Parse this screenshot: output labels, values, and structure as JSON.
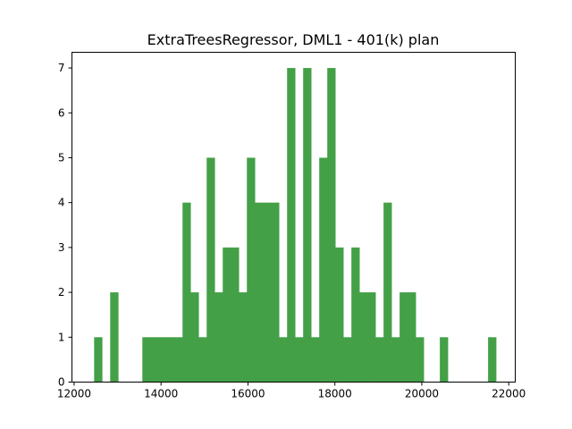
{
  "chart_data": {
    "type": "bar",
    "title": "ExtraTreesRegressor, DML1 - 401(k) plan",
    "xlabel": "",
    "ylabel": "",
    "xlim": [
      11950,
      22150
    ],
    "ylim": [
      0,
      7.35
    ],
    "xticks": [
      12000,
      14000,
      16000,
      18000,
      20000,
      22000
    ],
    "yticks": [
      0,
      1,
      2,
      3,
      4,
      5,
      6,
      7
    ],
    "bar_color": "#43a047",
    "bins": [
      {
        "x0": 12460,
        "x1": 12645,
        "count": 1
      },
      {
        "x0": 12830,
        "x1": 13015,
        "count": 2
      },
      {
        "x0": 13570,
        "x1": 13755,
        "count": 1
      },
      {
        "x0": 13755,
        "x1": 13940,
        "count": 1
      },
      {
        "x0": 13940,
        "x1": 14125,
        "count": 1
      },
      {
        "x0": 14125,
        "x1": 14310,
        "count": 1
      },
      {
        "x0": 14310,
        "x1": 14495,
        "count": 1
      },
      {
        "x0": 14495,
        "x1": 14680,
        "count": 4
      },
      {
        "x0": 14680,
        "x1": 14865,
        "count": 2
      },
      {
        "x0": 14865,
        "x1": 15050,
        "count": 1
      },
      {
        "x0": 15050,
        "x1": 15235,
        "count": 5
      },
      {
        "x0": 15235,
        "x1": 15420,
        "count": 2
      },
      {
        "x0": 15420,
        "x1": 15605,
        "count": 3
      },
      {
        "x0": 15605,
        "x1": 15790,
        "count": 3
      },
      {
        "x0": 15790,
        "x1": 15975,
        "count": 2
      },
      {
        "x0": 15975,
        "x1": 16160,
        "count": 5
      },
      {
        "x0": 16160,
        "x1": 16345,
        "count": 4
      },
      {
        "x0": 16345,
        "x1": 16530,
        "count": 4
      },
      {
        "x0": 16530,
        "x1": 16715,
        "count": 4
      },
      {
        "x0": 16715,
        "x1": 16900,
        "count": 1
      },
      {
        "x0": 16900,
        "x1": 17085,
        "count": 7
      },
      {
        "x0": 17085,
        "x1": 17270,
        "count": 1
      },
      {
        "x0": 17270,
        "x1": 17455,
        "count": 7
      },
      {
        "x0": 17455,
        "x1": 17640,
        "count": 1
      },
      {
        "x0": 17640,
        "x1": 17825,
        "count": 5
      },
      {
        "x0": 17825,
        "x1": 18010,
        "count": 7
      },
      {
        "x0": 18010,
        "x1": 18195,
        "count": 3
      },
      {
        "x0": 18195,
        "x1": 18380,
        "count": 1
      },
      {
        "x0": 18380,
        "x1": 18565,
        "count": 3
      },
      {
        "x0": 18565,
        "x1": 18750,
        "count": 2
      },
      {
        "x0": 18750,
        "x1": 18935,
        "count": 2
      },
      {
        "x0": 18935,
        "x1": 19120,
        "count": 1
      },
      {
        "x0": 19120,
        "x1": 19305,
        "count": 4
      },
      {
        "x0": 19305,
        "x1": 19490,
        "count": 1
      },
      {
        "x0": 19490,
        "x1": 19675,
        "count": 2
      },
      {
        "x0": 19675,
        "x1": 19860,
        "count": 2
      },
      {
        "x0": 19860,
        "x1": 20045,
        "count": 1
      },
      {
        "x0": 20415,
        "x1": 20600,
        "count": 1
      },
      {
        "x0": 21525,
        "x1": 21710,
        "count": 1
      }
    ]
  }
}
